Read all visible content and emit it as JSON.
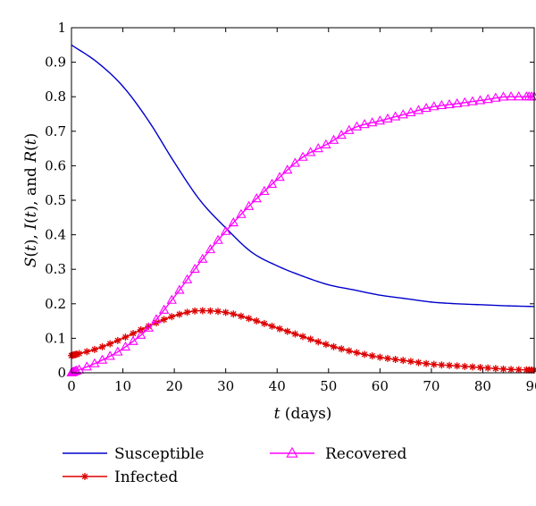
{
  "chart_data": {
    "type": "line",
    "title": "",
    "xlabel_var": "t",
    "xlabel_unit": " (days)",
    "ylabel_parts": [
      "S",
      "(",
      "t",
      "), ",
      "I",
      "(",
      "t",
      "), and ",
      "R",
      "(",
      "t",
      ")"
    ],
    "xlim": [
      0,
      90
    ],
    "ylim": [
      0,
      1
    ],
    "x_ticks": [
      0,
      10,
      20,
      30,
      40,
      50,
      60,
      70,
      80,
      90
    ],
    "y_ticks": [
      0,
      0.1,
      0.2,
      0.3,
      0.4,
      0.5,
      0.6,
      0.7,
      0.8,
      0.9,
      1
    ],
    "grid": false,
    "legend_position": "bottom",
    "series": [
      {
        "name": "Susceptible",
        "color": "#0000cc",
        "marker": "none",
        "x": [
          0,
          5,
          10,
          15,
          20,
          25,
          30,
          35,
          40,
          45,
          50,
          55,
          60,
          65,
          70,
          75,
          80,
          85,
          90
        ],
        "y": [
          0.95,
          0.9,
          0.83,
          0.73,
          0.61,
          0.5,
          0.42,
          0.35,
          0.31,
          0.28,
          0.255,
          0.24,
          0.225,
          0.215,
          0.205,
          0.2,
          0.197,
          0.194,
          0.192
        ]
      },
      {
        "name": "Infected",
        "color": "#dd0000",
        "marker": "asterisk",
        "x": [
          0,
          5,
          10,
          15,
          20,
          25,
          30,
          35,
          40,
          45,
          50,
          55,
          60,
          65,
          70,
          75,
          80,
          85,
          90
        ],
        "y": [
          0.05,
          0.07,
          0.1,
          0.135,
          0.165,
          0.18,
          0.175,
          0.155,
          0.13,
          0.105,
          0.08,
          0.06,
          0.045,
          0.035,
          0.025,
          0.02,
          0.015,
          0.01,
          0.008
        ]
      },
      {
        "name": "Recovered",
        "color": "#ff00ff",
        "marker": "triangle",
        "x": [
          0,
          5,
          10,
          15,
          20,
          25,
          30,
          35,
          40,
          45,
          50,
          55,
          60,
          65,
          70,
          75,
          80,
          85,
          90
        ],
        "y": [
          0.0,
          0.03,
          0.07,
          0.13,
          0.22,
          0.32,
          0.41,
          0.49,
          0.56,
          0.625,
          0.665,
          0.71,
          0.73,
          0.75,
          0.77,
          0.78,
          0.79,
          0.8,
          0.8
        ]
      }
    ]
  }
}
